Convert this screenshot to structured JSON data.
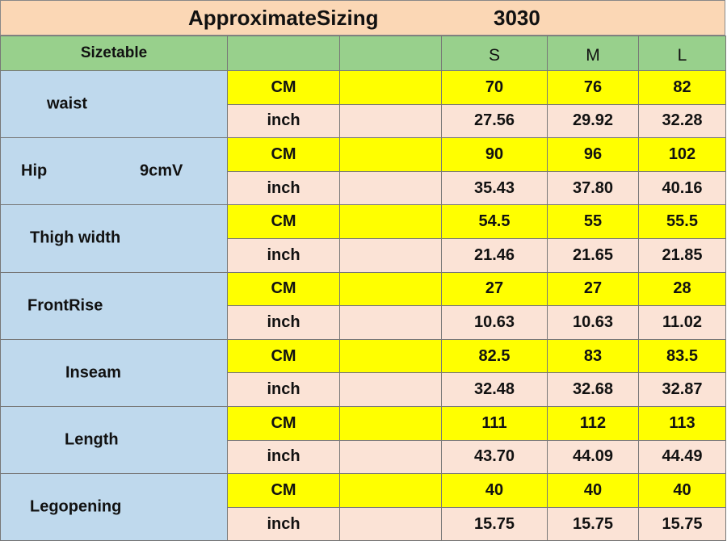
{
  "title": {
    "text": "ApproximateSizing",
    "code": "3030"
  },
  "header": {
    "label": "Sizetable",
    "sizes": [
      "S",
      "M",
      "L"
    ]
  },
  "rows": [
    {
      "name": "waist",
      "note": "",
      "cm": [
        "70",
        "76",
        "82"
      ],
      "inch": [
        "27.56",
        "29.92",
        "32.28"
      ]
    },
    {
      "name": "Hip",
      "note": "9cmV",
      "cm": [
        "90",
        "96",
        "102"
      ],
      "inch": [
        "35.43",
        "37.80",
        "40.16"
      ]
    },
    {
      "name": "Thigh width",
      "note": "",
      "cm": [
        "54.5",
        "55",
        "55.5"
      ],
      "inch": [
        "21.46",
        "21.65",
        "21.85"
      ]
    },
    {
      "name": "FrontRise",
      "note": "",
      "cm": [
        "27",
        "27",
        "28"
      ],
      "inch": [
        "10.63",
        "10.63",
        "11.02"
      ]
    },
    {
      "name": "Inseam",
      "note": "",
      "cm": [
        "82.5",
        "83",
        "83.5"
      ],
      "inch": [
        "32.48",
        "32.68",
        "32.87"
      ]
    },
    {
      "name": "Length",
      "note": "",
      "cm": [
        "111",
        "112",
        "113"
      ],
      "inch": [
        "43.70",
        "44.09",
        "44.49"
      ]
    },
    {
      "name": "Legopening",
      "note": "",
      "cm": [
        "40",
        "40",
        "40"
      ],
      "inch": [
        "15.75",
        "15.75",
        "15.75"
      ]
    }
  ],
  "units": {
    "cm": "CM",
    "inch": "inch"
  },
  "colors": {
    "title_bg": "#fbd7b5",
    "header_bg": "#98d08c",
    "measure_bg": "#bfd9ed",
    "cm_row_bg": "#ffff00",
    "inch_row_bg": "#fbe3d6"
  }
}
